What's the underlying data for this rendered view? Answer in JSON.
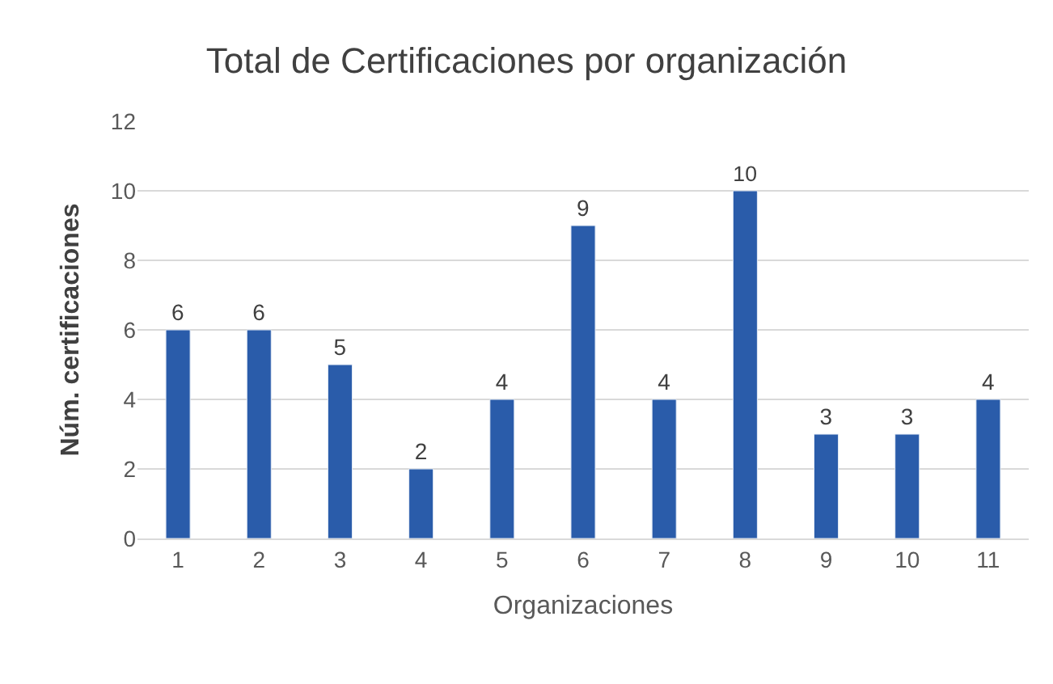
{
  "chart_data": {
    "type": "bar",
    "title": "Total de Certificaciones por organización",
    "xlabel": "Organizaciones",
    "ylabel": "Núm. certificaciones",
    "categories": [
      "1",
      "2",
      "3",
      "4",
      "5",
      "6",
      "7",
      "8",
      "9",
      "10",
      "11"
    ],
    "values": [
      6,
      6,
      5,
      2,
      4,
      9,
      4,
      10,
      3,
      3,
      4
    ],
    "color": "#2a5caa",
    "ylim": [
      0,
      12
    ],
    "yticks": [
      0,
      2,
      4,
      6,
      8,
      10,
      12
    ],
    "grid": "y",
    "data_labels": true
  }
}
